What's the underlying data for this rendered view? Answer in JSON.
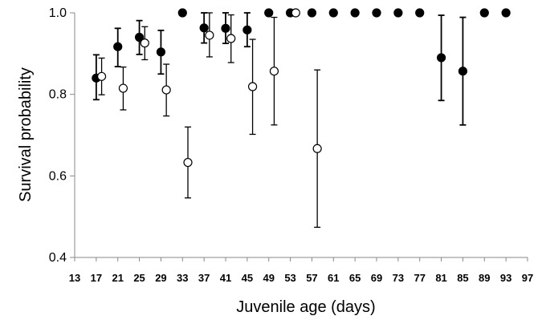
{
  "chart_data": {
    "type": "scatter",
    "title": "",
    "xlabel": "Juvenile age (days)",
    "ylabel": "Survival probability",
    "xlim": [
      13,
      97
    ],
    "ylim": [
      0.4,
      1.0
    ],
    "x_ticks": [
      13,
      17,
      21,
      25,
      29,
      33,
      37,
      41,
      45,
      49,
      53,
      57,
      61,
      65,
      69,
      73,
      77,
      81,
      85,
      89,
      93,
      97
    ],
    "y_ticks": [
      0.4,
      0.6,
      0.8,
      1.0
    ],
    "y_tick_labels": [
      "0.4",
      "0.6",
      "0.8",
      "1.0"
    ],
    "grid": false,
    "legend": "none",
    "series": [
      {
        "marker": "filled-circle",
        "color": "#000000",
        "points": [
          {
            "x": 17,
            "y": 0.84,
            "lo": 0.787,
            "hi": 0.897
          },
          {
            "x": 21,
            "y": 0.917,
            "lo": 0.868,
            "hi": 0.962
          },
          {
            "x": 25,
            "y": 0.94,
            "lo": 0.898,
            "hi": 0.981
          },
          {
            "x": 29,
            "y": 0.904,
            "lo": 0.85,
            "hi": 0.957
          },
          {
            "x": 33,
            "y": 1.0,
            "lo": null,
            "hi": null
          },
          {
            "x": 37,
            "y": 0.963,
            "lo": 0.926,
            "hi": 1.0
          },
          {
            "x": 41,
            "y": 0.962,
            "lo": 0.925,
            "hi": 1.0
          },
          {
            "x": 45,
            "y": 0.958,
            "lo": 0.917,
            "hi": 1.0
          },
          {
            "x": 49,
            "y": 1.0,
            "lo": null,
            "hi": null
          },
          {
            "x": 53,
            "y": 1.0,
            "lo": null,
            "hi": null
          },
          {
            "x": 57,
            "y": 1.0,
            "lo": null,
            "hi": null
          },
          {
            "x": 61,
            "y": 1.0,
            "lo": null,
            "hi": null
          },
          {
            "x": 65,
            "y": 1.0,
            "lo": null,
            "hi": null
          },
          {
            "x": 69,
            "y": 1.0,
            "lo": null,
            "hi": null
          },
          {
            "x": 73,
            "y": 1.0,
            "lo": null,
            "hi": null
          },
          {
            "x": 77,
            "y": 1.0,
            "lo": null,
            "hi": null
          },
          {
            "x": 81,
            "y": 0.89,
            "lo": 0.785,
            "hi": 0.994
          },
          {
            "x": 85,
            "y": 0.857,
            "lo": 0.725,
            "hi": 0.989
          },
          {
            "x": 89,
            "y": 1.0,
            "lo": null,
            "hi": null
          },
          {
            "x": 93,
            "y": 1.0,
            "lo": null,
            "hi": null
          }
        ]
      },
      {
        "marker": "open-circle",
        "color": "#000000",
        "points": [
          {
            "x": 18,
            "y": 0.844,
            "lo": 0.799,
            "hi": 0.889
          },
          {
            "x": 22,
            "y": 0.815,
            "lo": 0.762,
            "hi": 0.867
          },
          {
            "x": 26,
            "y": 0.926,
            "lo": 0.885,
            "hi": 0.966
          },
          {
            "x": 30,
            "y": 0.811,
            "lo": 0.747,
            "hi": 0.874
          },
          {
            "x": 34,
            "y": 0.633,
            "lo": 0.546,
            "hi": 0.72
          },
          {
            "x": 38,
            "y": 0.945,
            "lo": 0.892,
            "hi": 1.0
          },
          {
            "x": 42,
            "y": 0.937,
            "lo": 0.878,
            "hi": 0.995
          },
          {
            "x": 46,
            "y": 0.819,
            "lo": 0.702,
            "hi": 0.935
          },
          {
            "x": 50,
            "y": 0.857,
            "lo": 0.725,
            "hi": 0.989
          },
          {
            "x": 54,
            "y": 1.0,
            "lo": null,
            "hi": null
          },
          {
            "x": 58,
            "y": 0.667,
            "lo": 0.474,
            "hi": 0.86
          }
        ]
      }
    ]
  }
}
